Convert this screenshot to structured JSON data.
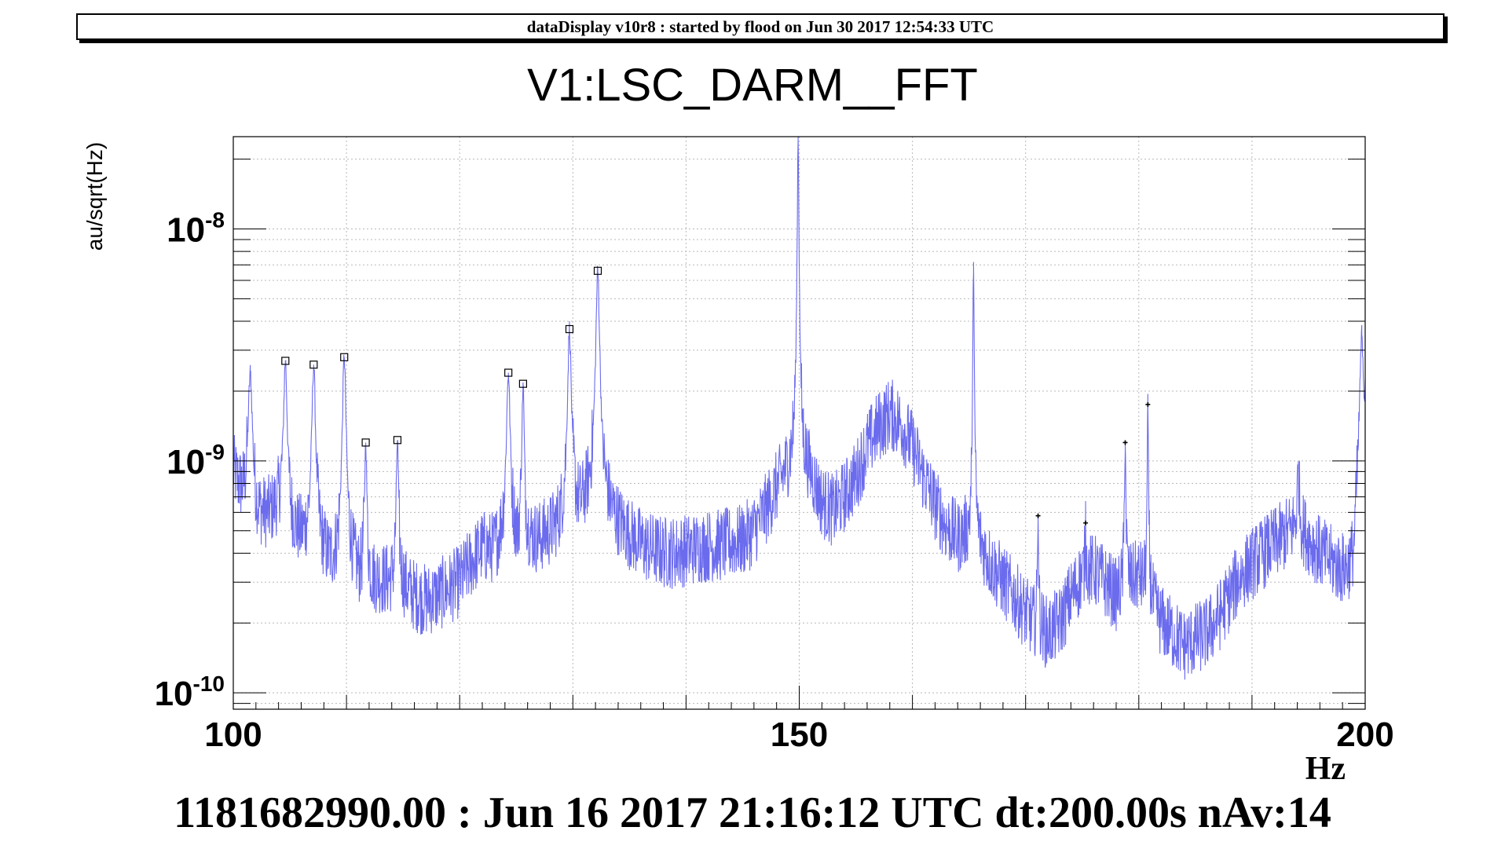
{
  "banner": {
    "text": "dataDisplay v10r8 : started by flood on Jun 30 2017 12:54:33 UTC"
  },
  "footer": {
    "text": "1181682990.00 : Jun 16 2017 21:16:12 UTC dt:200.00s nAv:14"
  },
  "chart_data": {
    "type": "line",
    "title": "V1:LSC_DARM__FFT",
    "xlabel": "Hz",
    "ylabel": "au/sqrt(Hz)",
    "xlim": [
      100,
      200
    ],
    "ylim": [
      8.5e-11,
      2.5e-08
    ],
    "yscale": "log",
    "grid": true,
    "line_color": "#6b6bee",
    "x_ticks": [
      {
        "value": 100,
        "label": "100"
      },
      {
        "value": 150,
        "label": "150"
      },
      {
        "value": 200,
        "label": "200"
      }
    ],
    "y_ticks": [
      {
        "value": 1e-10,
        "base": "10",
        "exp": "-10"
      },
      {
        "value": 1e-09,
        "base": "10",
        "exp": "-9"
      },
      {
        "value": 1e-08,
        "base": "10",
        "exp": "-8"
      }
    ],
    "series": [
      {
        "baseline": [
          [
            100.0,
            9e-10
          ],
          [
            101.0,
            6.5e-10
          ],
          [
            102.0,
            5.4e-10
          ],
          [
            103.0,
            5.8e-10
          ],
          [
            104.0,
            6.2e-10
          ],
          [
            105.0,
            5e-10
          ],
          [
            106.0,
            4.7e-10
          ],
          [
            107.0,
            4.2e-10
          ],
          [
            108.0,
            3.9e-10
          ],
          [
            109.0,
            3.5e-10
          ],
          [
            110.0,
            3.4e-10
          ],
          [
            111.0,
            3.2e-10
          ],
          [
            112.0,
            3e-10
          ],
          [
            113.0,
            3.1e-10
          ],
          [
            114.0,
            2.9e-10
          ],
          [
            115.0,
            2.8e-10
          ],
          [
            116.0,
            2.6e-10
          ],
          [
            117.0,
            2.5e-10
          ],
          [
            118.0,
            2.6e-10
          ],
          [
            119.0,
            2.8e-10
          ],
          [
            120.0,
            3e-10
          ],
          [
            121.0,
            3.6e-10
          ],
          [
            122.0,
            4.2e-10
          ],
          [
            123.0,
            4e-10
          ],
          [
            124.0,
            4.6e-10
          ],
          [
            125.0,
            4.4e-10
          ],
          [
            126.0,
            4.5e-10
          ],
          [
            127.0,
            4.6e-10
          ],
          [
            128.0,
            4.8e-10
          ],
          [
            129.0,
            5.2e-10
          ],
          [
            130.0,
            5.6e-10
          ],
          [
            131.0,
            6.5e-10
          ],
          [
            132.0,
            7e-10
          ],
          [
            133.0,
            6e-10
          ],
          [
            134.0,
            5.2e-10
          ],
          [
            135.0,
            4.7e-10
          ],
          [
            136.0,
            4.3e-10
          ],
          [
            137.0,
            4.1e-10
          ],
          [
            138.0,
            4e-10
          ],
          [
            139.0,
            4e-10
          ],
          [
            140.0,
            4.1e-10
          ],
          [
            141.0,
            4.2e-10
          ],
          [
            142.0,
            4.3e-10
          ],
          [
            143.0,
            4.3e-10
          ],
          [
            144.0,
            4.4e-10
          ],
          [
            145.0,
            4.5e-10
          ],
          [
            146.0,
            5e-10
          ],
          [
            147.0,
            6e-10
          ],
          [
            148.0,
            7.5e-10
          ],
          [
            149.0,
            9e-10
          ],
          [
            150.0,
            1e-09
          ],
          [
            151.0,
            8.5e-10
          ],
          [
            152.0,
            6.5e-10
          ],
          [
            153.0,
            6e-10
          ],
          [
            154.0,
            7e-10
          ],
          [
            155.0,
            8.5e-10
          ],
          [
            156.0,
            1.15e-09
          ],
          [
            157.0,
            1.4e-09
          ],
          [
            158.0,
            1.6e-09
          ],
          [
            159.0,
            1.45e-09
          ],
          [
            160.0,
            1.15e-09
          ],
          [
            161.0,
            8.5e-10
          ],
          [
            162.0,
            6.5e-10
          ],
          [
            163.0,
            5.2e-10
          ],
          [
            164.0,
            4.6e-10
          ],
          [
            165.0,
            4.7e-10
          ],
          [
            166.0,
            4.2e-10
          ],
          [
            167.0,
            3.5e-10
          ],
          [
            168.0,
            3e-10
          ],
          [
            169.0,
            2.6e-10
          ],
          [
            170.0,
            2.2e-10
          ],
          [
            171.0,
            1.9e-10
          ],
          [
            172.0,
            1.8e-10
          ],
          [
            173.0,
            2e-10
          ],
          [
            174.0,
            2.6e-10
          ],
          [
            175.0,
            3.2e-10
          ],
          [
            176.0,
            3.4e-10
          ],
          [
            177.0,
            3e-10
          ],
          [
            178.0,
            2.6e-10
          ],
          [
            179.0,
            2.9e-10
          ],
          [
            180.0,
            3.2e-10
          ],
          [
            181.0,
            2.5e-10
          ],
          [
            182.0,
            2e-10
          ],
          [
            183.0,
            1.8e-10
          ],
          [
            184.0,
            1.6e-10
          ],
          [
            185.0,
            1.7e-10
          ],
          [
            186.0,
            1.8e-10
          ],
          [
            187.0,
            2.1e-10
          ],
          [
            188.0,
            2.6e-10
          ],
          [
            189.0,
            3.2e-10
          ],
          [
            190.0,
            3.6e-10
          ],
          [
            191.0,
            4e-10
          ],
          [
            192.0,
            4.4e-10
          ],
          [
            193.0,
            4.8e-10
          ],
          [
            194.0,
            5.2e-10
          ],
          [
            195.0,
            4.6e-10
          ],
          [
            196.0,
            4e-10
          ],
          [
            197.0,
            3.6e-10
          ],
          [
            198.0,
            3.2e-10
          ],
          [
            199.0,
            3e-10
          ],
          [
            200.0,
            2e-09
          ]
        ],
        "peaks": [
          {
            "x": 101.5,
            "y": 2.4e-09,
            "width": 0.18
          },
          {
            "x": 104.6,
            "y": 2.7e-09,
            "width": 0.15
          },
          {
            "x": 107.1,
            "y": 2.6e-09,
            "width": 0.15
          },
          {
            "x": 109.8,
            "y": 2.8e-09,
            "width": 0.15
          },
          {
            "x": 111.7,
            "y": 1.2e-09,
            "width": 0.1
          },
          {
            "x": 114.5,
            "y": 1.23e-09,
            "width": 0.1
          },
          {
            "x": 124.3,
            "y": 2.4e-09,
            "width": 0.15
          },
          {
            "x": 125.6,
            "y": 2.15e-09,
            "width": 0.1
          },
          {
            "x": 129.7,
            "y": 3.7e-09,
            "width": 0.15
          },
          {
            "x": 132.2,
            "y": 6.6e-09,
            "width": 0.15
          },
          {
            "x": 149.9,
            "y": 2.5e-08,
            "width": 0.06
          },
          {
            "x": 165.4,
            "y": 7.2e-09,
            "width": 0.05
          },
          {
            "x": 171.1,
            "y": 5.8e-10,
            "width": 0.05
          },
          {
            "x": 175.3,
            "y": 5.4e-10,
            "width": 0.05
          },
          {
            "x": 178.8,
            "y": 1.2e-09,
            "width": 0.06
          },
          {
            "x": 180.8,
            "y": 1.75e-09,
            "width": 0.05
          },
          {
            "x": 194.1,
            "y": 9e-10,
            "width": 0.1
          },
          {
            "x": 199.7,
            "y": 3.5e-09,
            "width": 0.15
          }
        ]
      }
    ],
    "markers": [
      {
        "x": 104.6,
        "y": 2.7e-09,
        "shape": "square"
      },
      {
        "x": 107.1,
        "y": 2.6e-09,
        "shape": "square"
      },
      {
        "x": 109.8,
        "y": 2.8e-09,
        "shape": "square"
      },
      {
        "x": 111.7,
        "y": 1.2e-09,
        "shape": "square"
      },
      {
        "x": 114.5,
        "y": 1.23e-09,
        "shape": "square"
      },
      {
        "x": 124.3,
        "y": 2.4e-09,
        "shape": "square"
      },
      {
        "x": 125.6,
        "y": 2.15e-09,
        "shape": "square"
      },
      {
        "x": 129.7,
        "y": 3.7e-09,
        "shape": "square"
      },
      {
        "x": 132.2,
        "y": 6.6e-09,
        "shape": "square"
      },
      {
        "x": 171.1,
        "y": 5.8e-10,
        "shape": "star"
      },
      {
        "x": 175.3,
        "y": 5.4e-10,
        "shape": "star"
      },
      {
        "x": 178.8,
        "y": 1.2e-09,
        "shape": "star"
      },
      {
        "x": 180.8,
        "y": 1.75e-09,
        "shape": "star"
      }
    ]
  }
}
